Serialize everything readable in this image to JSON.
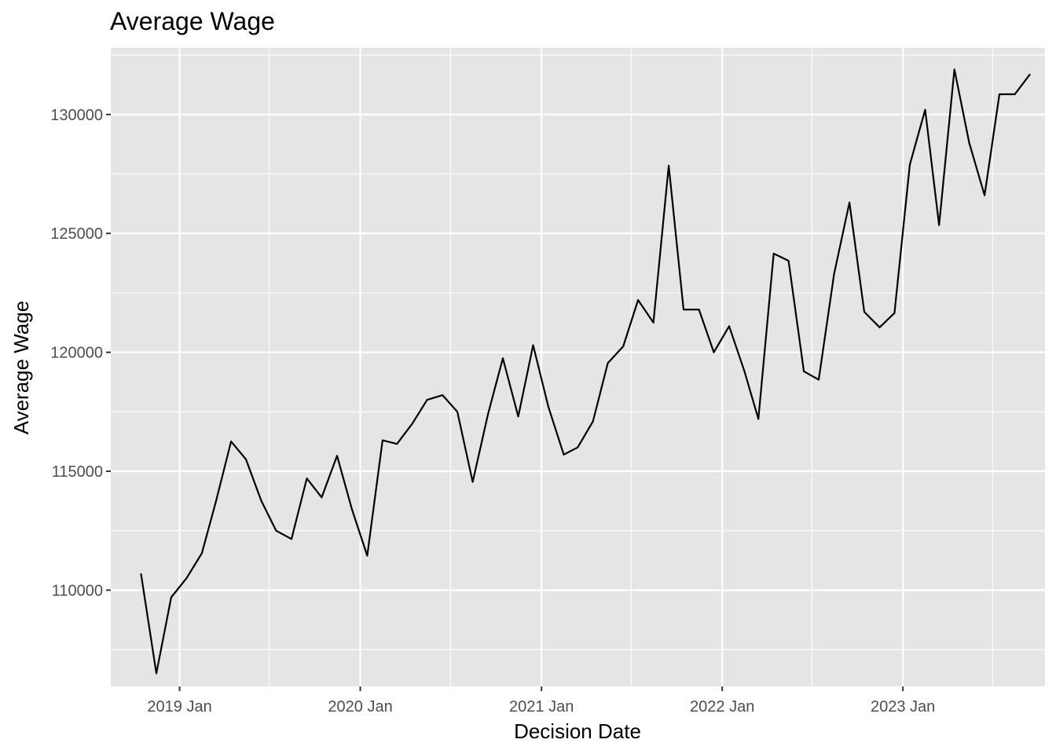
{
  "chart_data": {
    "type": "line",
    "title": "Average Wage",
    "xlabel": "Decision Date",
    "ylabel": "Average Wage",
    "x_axis": {
      "kind": "date",
      "range": [
        "2018-08-15",
        "2023-10-15"
      ],
      "major_ticks": [
        {
          "date": "2019-01-01",
          "label": "2019 Jan"
        },
        {
          "date": "2020-01-01",
          "label": "2020 Jan"
        },
        {
          "date": "2021-01-01",
          "label": "2021 Jan"
        },
        {
          "date": "2022-01-01",
          "label": "2022 Jan"
        },
        {
          "date": "2023-01-01",
          "label": "2023 Jan"
        }
      ],
      "minor_ticks": [
        "2019-07-01",
        "2020-07-01",
        "2021-07-01",
        "2022-07-01",
        "2023-07-01"
      ]
    },
    "y_axis": {
      "range": [
        105950,
        132800
      ],
      "major_ticks": [
        110000,
        115000,
        120000,
        125000,
        130000
      ],
      "minor_ticks": [
        107500,
        112500,
        117500,
        122500,
        127500,
        132500
      ]
    },
    "grid": true,
    "background": "#e5e5e5",
    "line_color": "#000000",
    "series": [
      {
        "x": [
          "2018-10",
          "2018-11",
          "2018-12",
          "2019-01",
          "2019-02",
          "2019-03",
          "2019-04",
          "2019-05",
          "2019-06",
          "2019-07",
          "2019-08",
          "2019-09",
          "2019-10",
          "2019-11",
          "2019-12",
          "2020-01",
          "2020-02",
          "2020-03",
          "2020-04",
          "2020-05",
          "2020-06",
          "2020-07",
          "2020-08",
          "2020-09",
          "2020-10",
          "2020-11",
          "2020-12",
          "2021-01",
          "2021-02",
          "2021-03",
          "2021-04",
          "2021-05",
          "2021-06",
          "2021-07",
          "2021-08",
          "2021-09",
          "2021-10",
          "2021-11",
          "2021-12",
          "2022-01",
          "2022-02",
          "2022-03",
          "2022-04",
          "2022-05",
          "2022-06",
          "2022-07",
          "2022-08",
          "2022-09",
          "2022-10",
          "2022-11",
          "2022-12",
          "2023-01",
          "2023-02",
          "2023-03",
          "2023-04",
          "2023-05",
          "2023-06",
          "2023-07",
          "2023-08",
          "2023-09"
        ],
        "values": [
          110700,
          106500,
          109700,
          110500,
          111550,
          113700,
          116250,
          115500,
          113750,
          112500,
          112150,
          114700,
          113900,
          115650,
          113400,
          111450,
          116300,
          116150,
          117000,
          118000,
          118200,
          117500,
          114550,
          117400,
          119750,
          117300,
          120300,
          117700,
          115700,
          116000,
          117100,
          119550,
          120250,
          122200,
          121250,
          127850,
          121800,
          121800,
          120000,
          121100,
          119200,
          117200,
          124150,
          123850,
          119200,
          118850,
          123300,
          126300,
          121700,
          121050,
          121650,
          127900,
          130200,
          125350,
          131900,
          128800,
          126600,
          130850,
          130850,
          131700
        ]
      }
    ]
  }
}
